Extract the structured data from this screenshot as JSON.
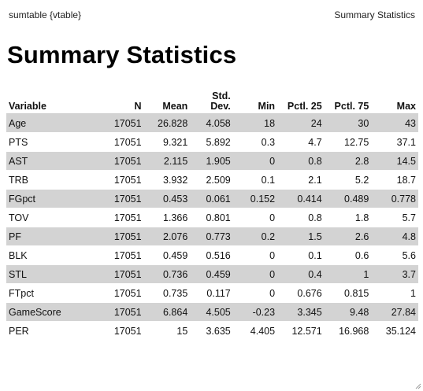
{
  "header": {
    "left_label": "sumtable {vtable}",
    "right_label": "Summary Statistics"
  },
  "title": "Summary Statistics",
  "table": {
    "columns": [
      {
        "label": "Variable"
      },
      {
        "label": "N"
      },
      {
        "label": "Mean"
      },
      {
        "label": "Std. Dev."
      },
      {
        "label": "Min"
      },
      {
        "label": "Pctl. 25"
      },
      {
        "label": "Pctl. 75"
      },
      {
        "label": "Max"
      }
    ],
    "rows": [
      [
        "Age",
        "17051",
        "26.828",
        "4.058",
        "18",
        "24",
        "30",
        "43"
      ],
      [
        "PTS",
        "17051",
        "9.321",
        "5.892",
        "0.3",
        "4.7",
        "12.75",
        "37.1"
      ],
      [
        "AST",
        "17051",
        "2.115",
        "1.905",
        "0",
        "0.8",
        "2.8",
        "14.5"
      ],
      [
        "TRB",
        "17051",
        "3.932",
        "2.509",
        "0.1",
        "2.1",
        "5.2",
        "18.7"
      ],
      [
        "FGpct",
        "17051",
        "0.453",
        "0.061",
        "0.152",
        "0.414",
        "0.489",
        "0.778"
      ],
      [
        "TOV",
        "17051",
        "1.366",
        "0.801",
        "0",
        "0.8",
        "1.8",
        "5.7"
      ],
      [
        "PF",
        "17051",
        "2.076",
        "0.773",
        "0.2",
        "1.5",
        "2.6",
        "4.8"
      ],
      [
        "BLK",
        "17051",
        "0.459",
        "0.516",
        "0",
        "0.1",
        "0.6",
        "5.6"
      ],
      [
        "STL",
        "17051",
        "0.736",
        "0.459",
        "0",
        "0.4",
        "1",
        "3.7"
      ],
      [
        "FTpct",
        "17051",
        "0.735",
        "0.117",
        "0",
        "0.676",
        "0.815",
        "1"
      ],
      [
        "GameScore",
        "17051",
        "6.864",
        "4.505",
        "-0.23",
        "3.345",
        "9.48",
        "27.84"
      ],
      [
        "PER",
        "17051",
        "15",
        "3.635",
        "4.405",
        "12.571",
        "16.968",
        "35.124"
      ]
    ]
  }
}
